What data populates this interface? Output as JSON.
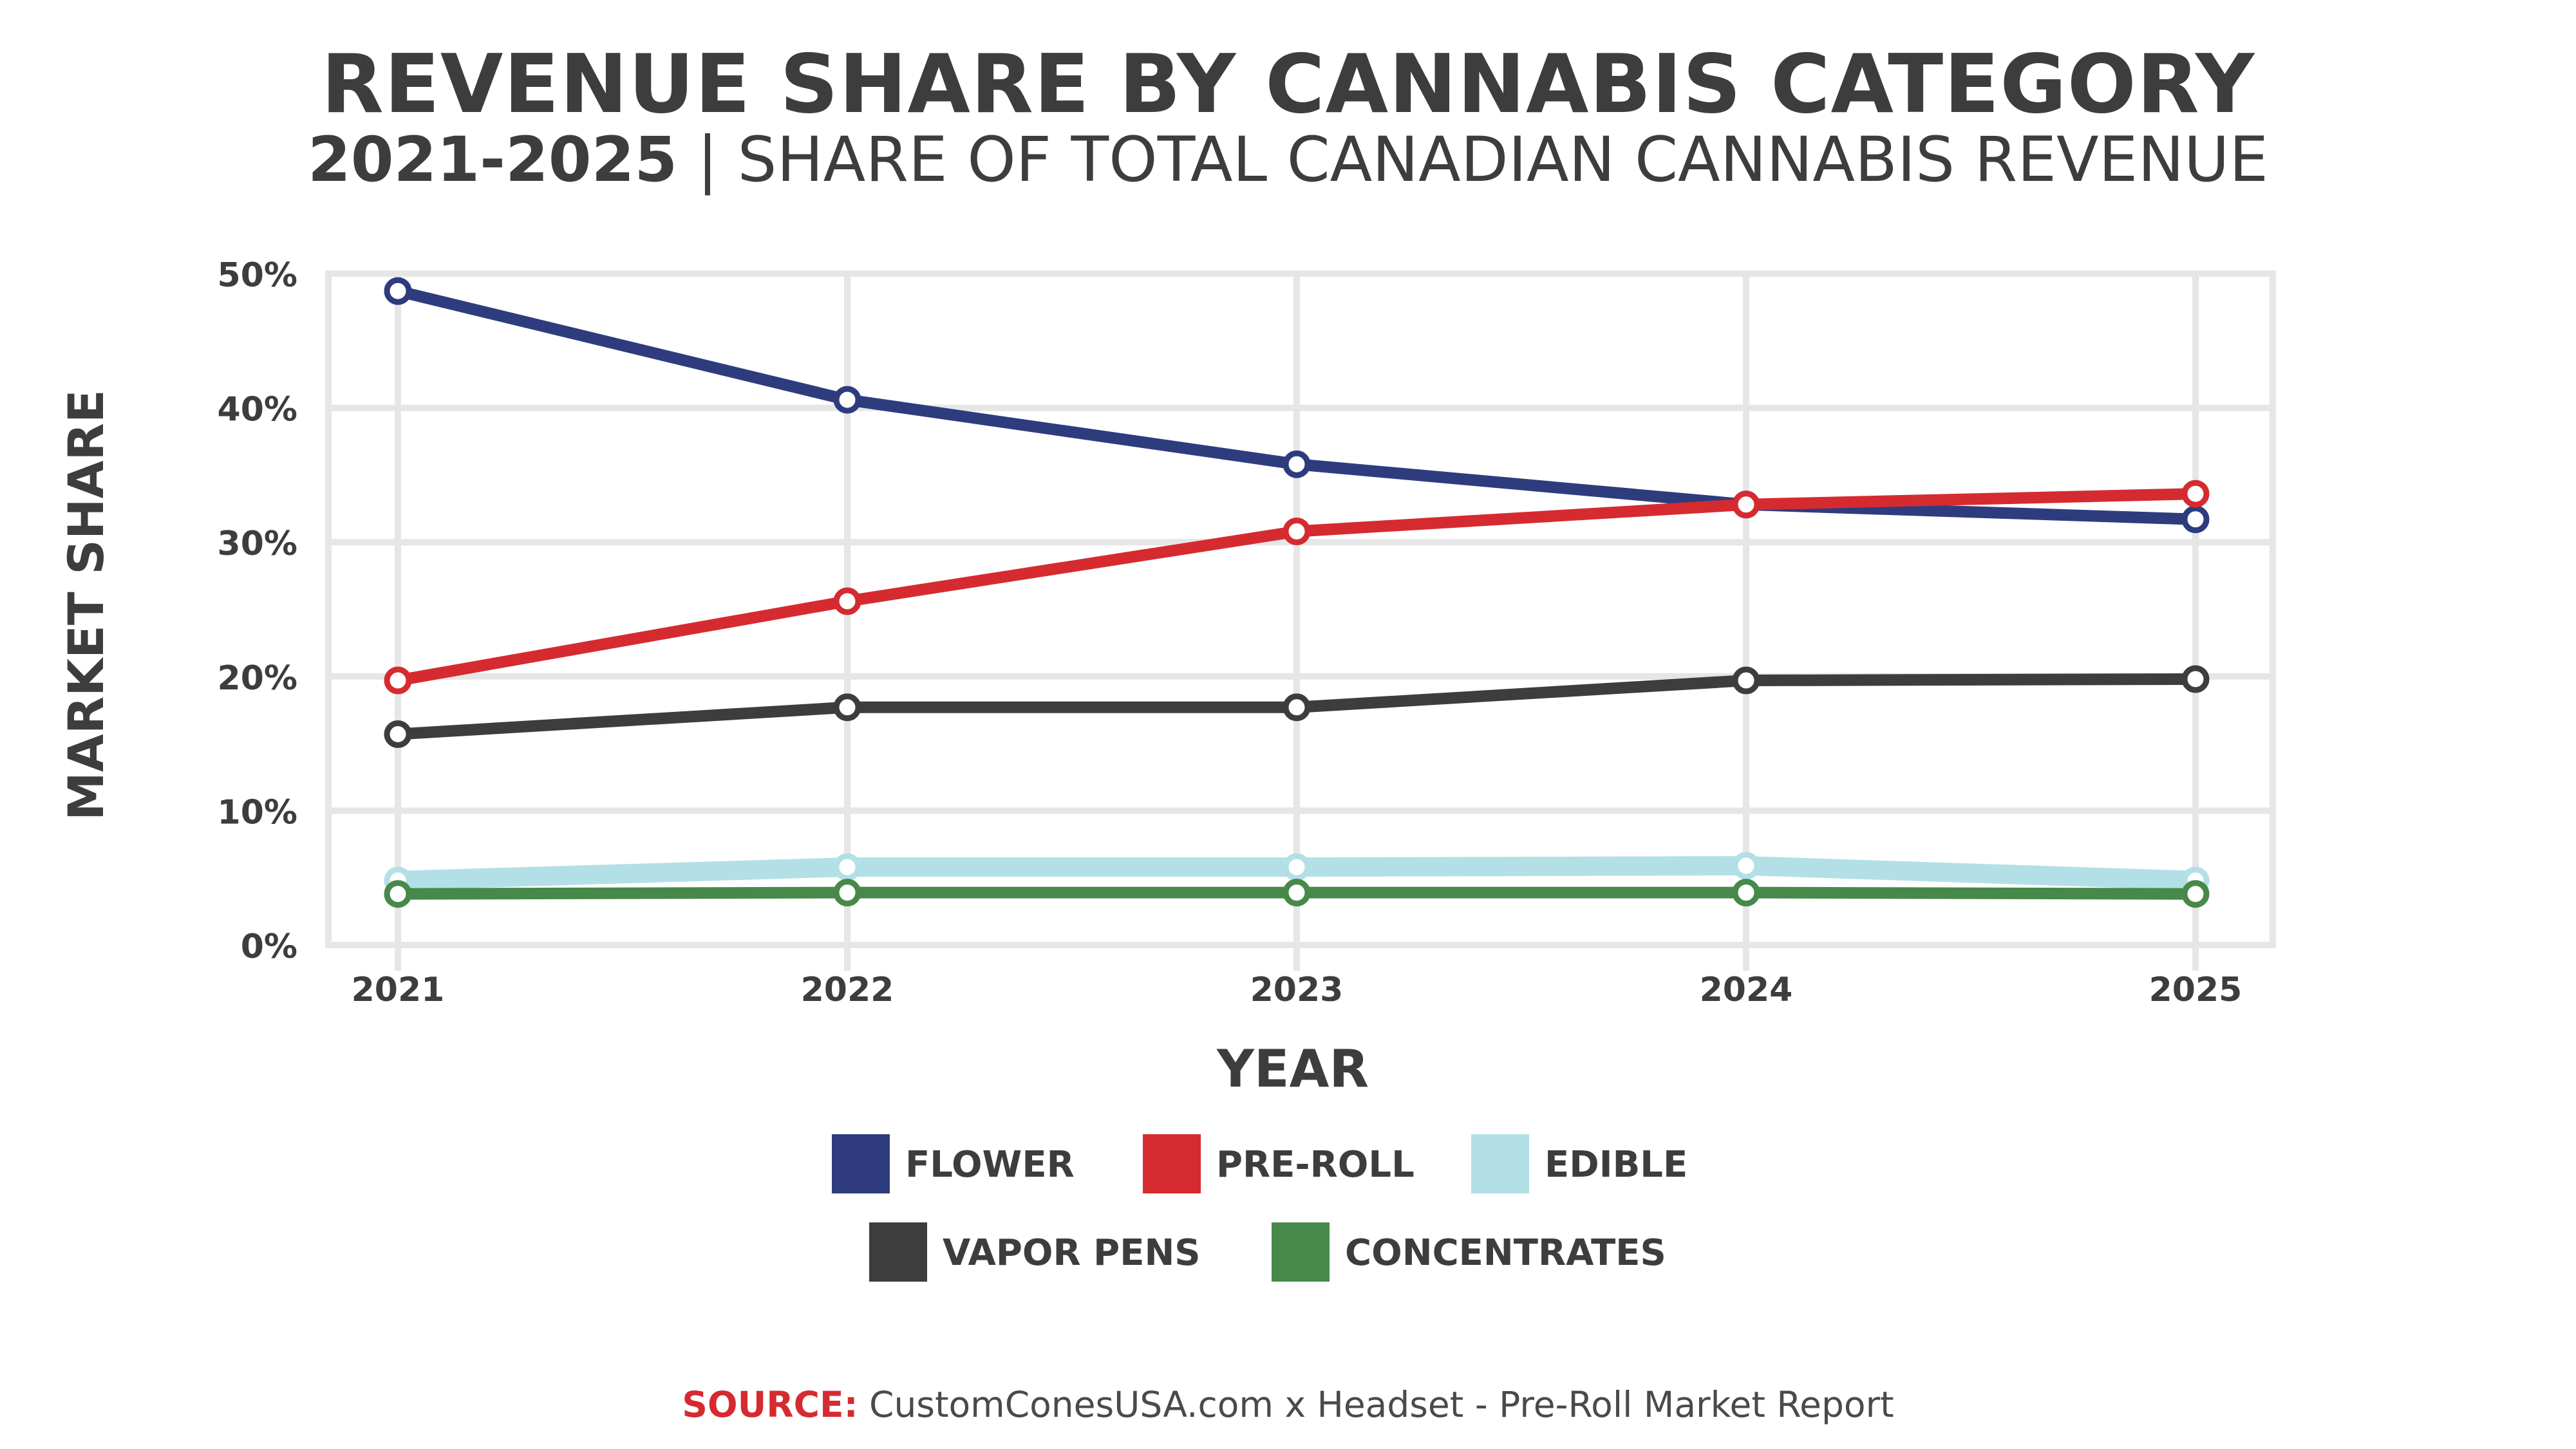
{
  "title": "REVENUE SHARE BY CANNABIS CATEGORY",
  "subtitle_years": "2021-2025",
  "subtitle_separator": "|",
  "subtitle_rest": "SHARE OF TOTAL CANADIAN CANNABIS REVENUE",
  "source_label": "SOURCE:",
  "source_text": "CustomConesUSA.com x Headset - Pre-Roll Market Report",
  "chart_data": {
    "type": "line",
    "title": "REVENUE SHARE BY CANNABIS CATEGORY",
    "subtitle": "2021-2025 | SHARE OF TOTAL CANADIAN CANNABIS REVENUE",
    "xlabel": "YEAR",
    "ylabel": "MARKET SHARE",
    "x": [
      "2021",
      "2022",
      "2023",
      "2024",
      "2025"
    ],
    "ylim": [
      0,
      50
    ],
    "yticks": [
      0,
      10,
      20,
      30,
      40,
      50
    ],
    "ytick_labels": [
      "0%",
      "10%",
      "20%",
      "30%",
      "40%",
      "50%"
    ],
    "grid": true,
    "legend_position": "bottom",
    "series": [
      {
        "name": "FLOWER",
        "color": "#2e3c7e",
        "values": [
          48.7,
          40.6,
          35.8,
          32.8,
          31.7
        ]
      },
      {
        "name": "PRE-ROLL",
        "color": "#d52b30",
        "values": [
          19.7,
          25.6,
          30.8,
          32.8,
          33.6
        ]
      },
      {
        "name": "EDIBLE",
        "color": "#b3e0e6",
        "values": [
          4.8,
          5.8,
          5.8,
          5.9,
          4.8
        ]
      },
      {
        "name": "VAPOR PENS",
        "color": "#3d3d3d",
        "values": [
          15.7,
          17.7,
          17.7,
          19.7,
          19.8
        ]
      },
      {
        "name": "CONCENTRATES",
        "color": "#46894a",
        "values": [
          3.8,
          3.9,
          3.9,
          3.9,
          3.8
        ]
      }
    ]
  }
}
